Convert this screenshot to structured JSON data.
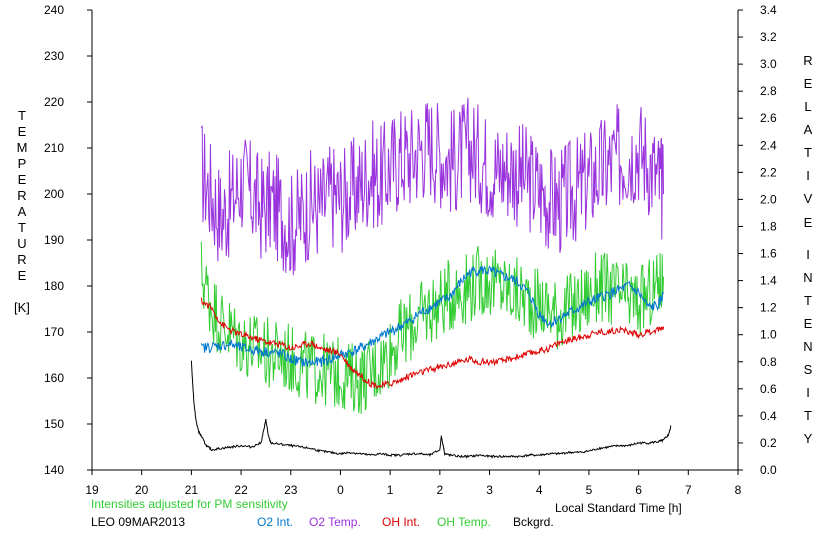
{
  "chart_data": {
    "type": "line",
    "xlabel": "Local Standard Time [h]",
    "ylabel_left_letters": [
      "T",
      "E",
      "M",
      "P",
      "E",
      "R",
      "A",
      "T",
      "U",
      "R",
      "E"
    ],
    "ylabel_left_unit": "[K]",
    "ylabel_right_letters": [
      "R",
      "E",
      "L",
      "A",
      "T",
      "I",
      "V",
      "E",
      "I",
      "N",
      "T",
      "E",
      "N",
      "S",
      "I",
      "T",
      "Y"
    ],
    "xlim": [
      19,
      32
    ],
    "ylim_left": [
      140,
      240
    ],
    "ylim_right": [
      0.0,
      3.4
    ],
    "x_ticks": [
      19,
      20,
      21,
      22,
      23,
      24,
      25,
      26,
      27,
      28,
      29,
      30,
      31,
      32
    ],
    "x_tick_labels": [
      "19",
      "20",
      "21",
      "22",
      "23",
      "0",
      "1",
      "2",
      "3",
      "4",
      "5",
      "6",
      "7",
      "8"
    ],
    "y_left_ticks": [
      140,
      150,
      160,
      170,
      180,
      190,
      200,
      210,
      220,
      230,
      240
    ],
    "y_left_tick_labels": [
      "140",
      "150",
      "160",
      "170",
      "180",
      "190",
      "200",
      "210",
      "220",
      "230",
      "240"
    ],
    "y_right_ticks": [
      0.0,
      0.2,
      0.4,
      0.6,
      0.8,
      1.0,
      1.2,
      1.4,
      1.6,
      1.8,
      2.0,
      2.2,
      2.4,
      2.6,
      2.8,
      3.0,
      3.2,
      3.4
    ],
    "y_right_tick_labels": [
      "0.0",
      "0.2",
      "0.4",
      "0.6",
      "0.8",
      "1.0",
      "1.2",
      "1.4",
      "1.6",
      "1.8",
      "2.0",
      "2.2",
      "2.4",
      "2.6",
      "2.8",
      "3.0",
      "3.2",
      "3.4"
    ],
    "note": "Intensities adjusted for PM sensitivity",
    "station": "LEO 09MAR2013",
    "series": [
      {
        "name": "O2 Temp.",
        "color": "#9933dd",
        "axis": "left",
        "x": [
          21.2,
          21.4,
          21.6,
          21.8,
          22.0,
          22.2,
          22.4,
          22.6,
          22.8,
          23.0,
          23.2,
          23.4,
          23.6,
          23.8,
          24.0,
          24.2,
          24.4,
          24.6,
          24.8,
          25.0,
          25.2,
          25.4,
          25.6,
          25.8,
          26.0,
          26.2,
          26.4,
          26.6,
          26.8,
          27.0,
          27.2,
          27.4,
          27.6,
          27.8,
          28.0,
          28.2,
          28.4,
          28.6,
          28.8,
          29.0,
          29.2,
          29.4,
          29.6,
          29.8,
          30.0,
          30.2,
          30.4,
          30.5
        ],
        "y": [
          205,
          200,
          195,
          198,
          203,
          200,
          197,
          198,
          196,
          193,
          195,
          198,
          197,
          200,
          199,
          200,
          202,
          205,
          203,
          206,
          208,
          208,
          210,
          211,
          209,
          207,
          208,
          210,
          208,
          206,
          205,
          206,
          204,
          203,
          201,
          199,
          198,
          200,
          201,
          203,
          205,
          206,
          208,
          209,
          210,
          207,
          203,
          200
        ],
        "amplitude": 12
      },
      {
        "name": "OH Temp.",
        "color": "#33cc33",
        "axis": "left",
        "x": [
          21.2,
          21.4,
          21.6,
          21.8,
          22.0,
          22.2,
          22.4,
          22.6,
          22.8,
          23.0,
          23.2,
          23.4,
          23.6,
          23.8,
          24.0,
          24.2,
          24.4,
          24.6,
          24.8,
          25.0,
          25.2,
          25.4,
          25.6,
          25.8,
          26.0,
          26.2,
          26.4,
          26.6,
          26.8,
          27.0,
          27.2,
          27.4,
          27.6,
          27.8,
          28.0,
          28.2,
          28.4,
          28.6,
          28.8,
          29.0,
          29.2,
          29.4,
          29.6,
          29.8,
          30.0,
          30.2,
          30.4,
          30.5
        ],
        "y": [
          183,
          176,
          172,
          170,
          168,
          167,
          166,
          165,
          165,
          164,
          163,
          162,
          162,
          161,
          161,
          160,
          160,
          161,
          163,
          166,
          169,
          171,
          173,
          175,
          176,
          178,
          179,
          180,
          181,
          181,
          180,
          179,
          178,
          177,
          176,
          175,
          174,
          175,
          176,
          178,
          180,
          179,
          178,
          177,
          176,
          178,
          180,
          182
        ],
        "amplitude": 8
      },
      {
        "name": "O2 Int.",
        "color": "#0077cc",
        "axis": "right",
        "x": [
          21.2,
          21.4,
          21.6,
          21.8,
          22.0,
          22.2,
          22.4,
          22.6,
          22.8,
          23.0,
          23.2,
          23.4,
          23.6,
          23.8,
          24.0,
          24.2,
          24.4,
          24.6,
          24.8,
          25.0,
          25.2,
          25.4,
          25.6,
          25.8,
          26.0,
          26.2,
          26.4,
          26.6,
          26.8,
          27.0,
          27.2,
          27.4,
          27.6,
          27.8,
          28.0,
          28.2,
          28.4,
          28.6,
          28.8,
          29.0,
          29.2,
          29.4,
          29.6,
          29.8,
          30.0,
          30.2,
          30.4,
          30.5
        ],
        "y": [
          0.9,
          0.91,
          0.92,
          0.93,
          0.9,
          0.89,
          0.88,
          0.87,
          0.86,
          0.82,
          0.8,
          0.79,
          0.8,
          0.82,
          0.85,
          0.87,
          0.9,
          0.94,
          0.98,
          1.02,
          1.06,
          1.1,
          1.16,
          1.2,
          1.24,
          1.28,
          1.38,
          1.46,
          1.48,
          1.47,
          1.44,
          1.42,
          1.38,
          1.3,
          1.15,
          1.08,
          1.12,
          1.16,
          1.2,
          1.24,
          1.27,
          1.3,
          1.33,
          1.36,
          1.31,
          1.2,
          1.22,
          1.3
        ],
        "amplitude": 0.04
      },
      {
        "name": "OH Int.",
        "color": "#dd0000",
        "axis": "right",
        "x": [
          21.2,
          21.4,
          21.6,
          21.8,
          22.0,
          22.2,
          22.4,
          22.6,
          22.8,
          23.0,
          23.2,
          23.4,
          23.6,
          23.8,
          24.0,
          24.2,
          24.4,
          24.6,
          24.8,
          25.0,
          25.2,
          25.4,
          25.6,
          25.8,
          26.0,
          26.2,
          26.4,
          26.6,
          26.8,
          27.0,
          27.2,
          27.4,
          27.6,
          27.8,
          28.0,
          28.2,
          28.4,
          28.6,
          28.8,
          29.0,
          29.2,
          29.4,
          29.6,
          29.8,
          30.0,
          30.2,
          30.4,
          30.5
        ],
        "y": [
          1.25,
          1.2,
          1.08,
          1.03,
          1.0,
          0.98,
          0.96,
          0.94,
          0.93,
          0.9,
          0.92,
          0.94,
          0.9,
          0.88,
          0.86,
          0.76,
          0.7,
          0.64,
          0.62,
          0.64,
          0.66,
          0.7,
          0.72,
          0.74,
          0.76,
          0.78,
          0.8,
          0.82,
          0.8,
          0.8,
          0.8,
          0.82,
          0.84,
          0.86,
          0.88,
          0.9,
          0.94,
          0.96,
          0.98,
          1.0,
          1.02,
          1.02,
          1.04,
          1.02,
          1.0,
          1.02,
          1.04,
          1.06
        ],
        "amplitude": 0.025
      },
      {
        "name": "Bckgrd.",
        "color": "#000000",
        "axis": "right",
        "x": [
          21.0,
          21.05,
          21.1,
          21.15,
          21.2,
          21.3,
          21.4,
          21.6,
          21.8,
          22.0,
          22.2,
          22.4,
          22.5,
          22.55,
          22.6,
          22.8,
          23.0,
          23.2,
          23.4,
          23.6,
          23.8,
          24.0,
          24.2,
          24.4,
          24.6,
          24.8,
          25.0,
          25.2,
          25.4,
          25.6,
          25.8,
          26.0,
          26.03,
          26.1,
          26.2,
          26.4,
          26.6,
          26.8,
          27.0,
          27.2,
          27.4,
          27.6,
          27.8,
          28.0,
          28.2,
          28.4,
          28.6,
          28.8,
          29.0,
          29.2,
          29.4,
          29.6,
          29.8,
          30.0,
          30.2,
          30.4,
          30.5,
          30.6,
          30.65
        ],
        "y": [
          0.8,
          0.5,
          0.35,
          0.28,
          0.25,
          0.18,
          0.15,
          0.16,
          0.17,
          0.18,
          0.17,
          0.2,
          0.37,
          0.25,
          0.2,
          0.19,
          0.18,
          0.17,
          0.16,
          0.14,
          0.13,
          0.12,
          0.13,
          0.12,
          0.11,
          0.12,
          0.11,
          0.11,
          0.12,
          0.12,
          0.11,
          0.15,
          0.25,
          0.12,
          0.11,
          0.1,
          0.1,
          0.11,
          0.1,
          0.1,
          0.1,
          0.1,
          0.11,
          0.11,
          0.12,
          0.12,
          0.13,
          0.13,
          0.14,
          0.16,
          0.17,
          0.18,
          0.18,
          0.2,
          0.2,
          0.21,
          0.22,
          0.26,
          0.32
        ],
        "amplitude": 0.008
      }
    ]
  }
}
